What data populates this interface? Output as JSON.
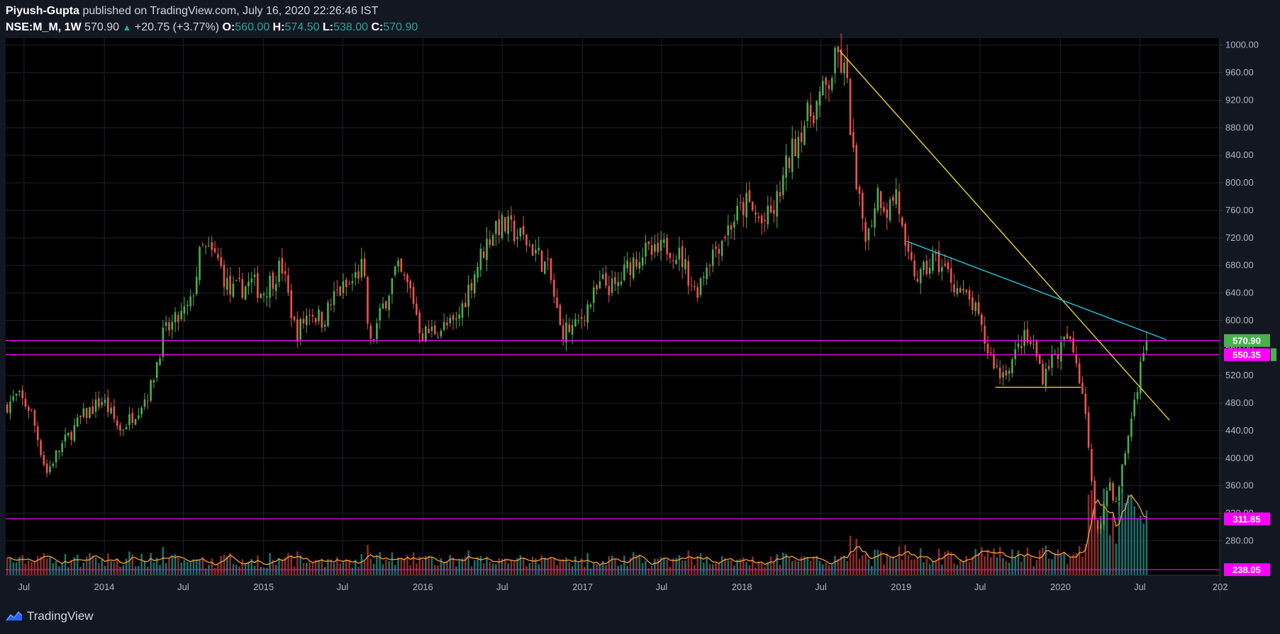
{
  "header": {
    "author": "Piyush-Gupta",
    "published": "published on TradingView.com, July 16, 2020 22:26:46 IST",
    "symbol": "NSE:M_M, 1W",
    "last": "570.90",
    "change_arrow": "▲",
    "change": "+20.75 (+3.77%)",
    "o_label": "O:",
    "o_value": "560.00",
    "h_label": "H:",
    "h_value": "574.50",
    "l_label": "L:",
    "l_value": "538.00",
    "c_label": "C:",
    "c_value": "570.90"
  },
  "footer": {
    "brand": "TradingView",
    "logo_icon": "tradingview-logo-icon"
  },
  "colors": {
    "background": "#131722",
    "plot_bg": "#000000",
    "grid": "#1e222d",
    "bull": "#4caf50",
    "bear": "#ef5350",
    "vol_bull": "#1f6f6a",
    "vol_bear": "#8e2d2b",
    "vol_ma": "#f7a23b",
    "magenta": "#ff00ff",
    "trend_yellow": "#e6d72b",
    "trend_cyan": "#26c6da",
    "last_price": "#4caf50"
  },
  "chart_data": {
    "type": "candlestick",
    "title": "NSE:M_M, 1W",
    "ylim": [
      230,
      1010
    ],
    "y_ticks": [
      280,
      320,
      360,
      400,
      440,
      480,
      520,
      560,
      600,
      640,
      680,
      720,
      760,
      800,
      840,
      880,
      920,
      960,
      1000
    ],
    "y_tick_labels": [
      "280.00",
      "320.00",
      "360.00",
      "400.00",
      "440.00",
      "480.00",
      "520.00",
      "560.00",
      "600.00",
      "640.00",
      "680.00",
      "720.00",
      "760.00",
      "800.00",
      "840.00",
      "880.00",
      "920.00",
      "960.00",
      "1000.00"
    ],
    "x_range": [
      "2013-05-20",
      "2020-12-31"
    ],
    "x_ticks": [
      {
        "date": "2013-07-01",
        "label": "Jul"
      },
      {
        "date": "2014-01-01",
        "label": "2014"
      },
      {
        "date": "2014-07-01",
        "label": "Jul"
      },
      {
        "date": "2015-01-01",
        "label": "2015"
      },
      {
        "date": "2015-07-01",
        "label": "Jul"
      },
      {
        "date": "2016-01-01",
        "label": "2016"
      },
      {
        "date": "2016-07-01",
        "label": "Jul"
      },
      {
        "date": "2017-01-01",
        "label": "2017"
      },
      {
        "date": "2017-07-01",
        "label": "Jul"
      },
      {
        "date": "2018-01-01",
        "label": "2018"
      },
      {
        "date": "2018-07-01",
        "label": "Jul"
      },
      {
        "date": "2019-01-01",
        "label": "2019"
      },
      {
        "date": "2019-07-01",
        "label": "Jul"
      },
      {
        "date": "2020-01-01",
        "label": "2020"
      },
      {
        "date": "2020-07-01",
        "label": "Jul"
      },
      {
        "date": "2021-01-01",
        "label": "202"
      }
    ],
    "price_path": [
      [
        "2013-05-20",
        475
      ],
      [
        "2013-06-20",
        490
      ],
      [
        "2013-07-20",
        470
      ],
      [
        "2013-08-25",
        378
      ],
      [
        "2013-09-20",
        410
      ],
      [
        "2013-11-15",
        460
      ],
      [
        "2014-01-01",
        485
      ],
      [
        "2014-02-10",
        440
      ],
      [
        "2014-03-20",
        470
      ],
      [
        "2014-04-20",
        500
      ],
      [
        "2014-05-20",
        580
      ],
      [
        "2014-06-20",
        600
      ],
      [
        "2014-07-20",
        620
      ],
      [
        "2014-08-15",
        705
      ],
      [
        "2014-09-20",
        690
      ],
      [
        "2014-10-20",
        640
      ],
      [
        "2014-12-10",
        655
      ],
      [
        "2015-01-01",
        640
      ],
      [
        "2015-02-15",
        680
      ],
      [
        "2015-03-20",
        580
      ],
      [
        "2015-04-20",
        615
      ],
      [
        "2015-05-20",
        600
      ],
      [
        "2015-06-20",
        640
      ],
      [
        "2015-07-20",
        650
      ],
      [
        "2015-08-20",
        680
      ],
      [
        "2015-09-05",
        560
      ],
      [
        "2015-10-05",
        620
      ],
      [
        "2015-11-05",
        675
      ],
      [
        "2015-12-10",
        640
      ],
      [
        "2016-01-01",
        580
      ],
      [
        "2016-02-20",
        590
      ],
      [
        "2016-03-20",
        595
      ],
      [
        "2016-04-20",
        650
      ],
      [
        "2016-05-20",
        700
      ],
      [
        "2016-06-20",
        740
      ],
      [
        "2016-07-15",
        735
      ],
      [
        "2016-08-20",
        720
      ],
      [
        "2016-09-20",
        700
      ],
      [
        "2016-10-20",
        670
      ],
      [
        "2016-11-15",
        585
      ],
      [
        "2016-12-20",
        590
      ],
      [
        "2017-01-15",
        620
      ],
      [
        "2017-02-20",
        655
      ],
      [
        "2017-03-20",
        645
      ],
      [
        "2017-04-20",
        680
      ],
      [
        "2017-05-20",
        700
      ],
      [
        "2017-06-20",
        695
      ],
      [
        "2017-07-20",
        710
      ],
      [
        "2017-08-20",
        690
      ],
      [
        "2017-09-20",
        640
      ],
      [
        "2017-10-20",
        690
      ],
      [
        "2017-11-20",
        720
      ],
      [
        "2017-12-20",
        750
      ],
      [
        "2018-01-15",
        770
      ],
      [
        "2018-02-20",
        740
      ],
      [
        "2018-03-20",
        760
      ],
      [
        "2018-04-20",
        830
      ],
      [
        "2018-05-20",
        880
      ],
      [
        "2018-06-20",
        910
      ],
      [
        "2018-07-20",
        940
      ],
      [
        "2018-08-12",
        985
      ],
      [
        "2018-09-01",
        950
      ],
      [
        "2018-09-25",
        780
      ],
      [
        "2018-10-20",
        720
      ],
      [
        "2018-11-10",
        790
      ],
      [
        "2018-12-05",
        760
      ],
      [
        "2018-12-25",
        790
      ],
      [
        "2019-01-15",
        690
      ],
      [
        "2019-02-15",
        660
      ],
      [
        "2019-03-20",
        690
      ],
      [
        "2019-04-20",
        670
      ],
      [
        "2019-05-20",
        640
      ],
      [
        "2019-06-20",
        620
      ],
      [
        "2019-07-20",
        560
      ],
      [
        "2019-08-20",
        520
      ],
      [
        "2019-09-20",
        545
      ],
      [
        "2019-10-10",
        575
      ],
      [
        "2019-11-05",
        560
      ],
      [
        "2019-11-25",
        520
      ],
      [
        "2019-12-10",
        540
      ],
      [
        "2020-01-01",
        555
      ],
      [
        "2020-01-20",
        575
      ],
      [
        "2020-02-10",
        540
      ],
      [
        "2020-03-01",
        480
      ],
      [
        "2020-03-25",
        290
      ],
      [
        "2020-04-10",
        320
      ],
      [
        "2020-04-25",
        370
      ],
      [
        "2020-05-10",
        330
      ],
      [
        "2020-05-25",
        385
      ],
      [
        "2020-06-10",
        440
      ],
      [
        "2020-06-25",
        495
      ],
      [
        "2020-07-10",
        545
      ],
      [
        "2020-07-16",
        571
      ]
    ],
    "last_price": 570.9,
    "horizontal_lines": [
      {
        "price": 570.9,
        "label": "570.90",
        "role": "last-price"
      },
      {
        "price": 550.35,
        "label": "550.35",
        "role": "level"
      },
      {
        "price": 311.85,
        "label": "311.85",
        "role": "level"
      },
      {
        "price": 238.05,
        "label": "238.05",
        "role": "level"
      }
    ],
    "trend_lines": [
      {
        "name": "yellow-downtrend",
        "from": [
          "2018-08-13",
          992
        ],
        "to": [
          "2020-09-07",
          455
        ]
      },
      {
        "name": "cyan-downtrend",
        "from": [
          "2019-01-14",
          715
        ],
        "to": [
          "2020-08-31",
          572
        ]
      },
      {
        "name": "yellow-support",
        "from": [
          "2019-08-05",
          503
        ],
        "to": [
          "2020-02-17",
          503
        ]
      }
    ],
    "volume": {
      "ma_color": "#f7a23b",
      "note": "volume histogram with moving average, bottom overlay"
    }
  }
}
